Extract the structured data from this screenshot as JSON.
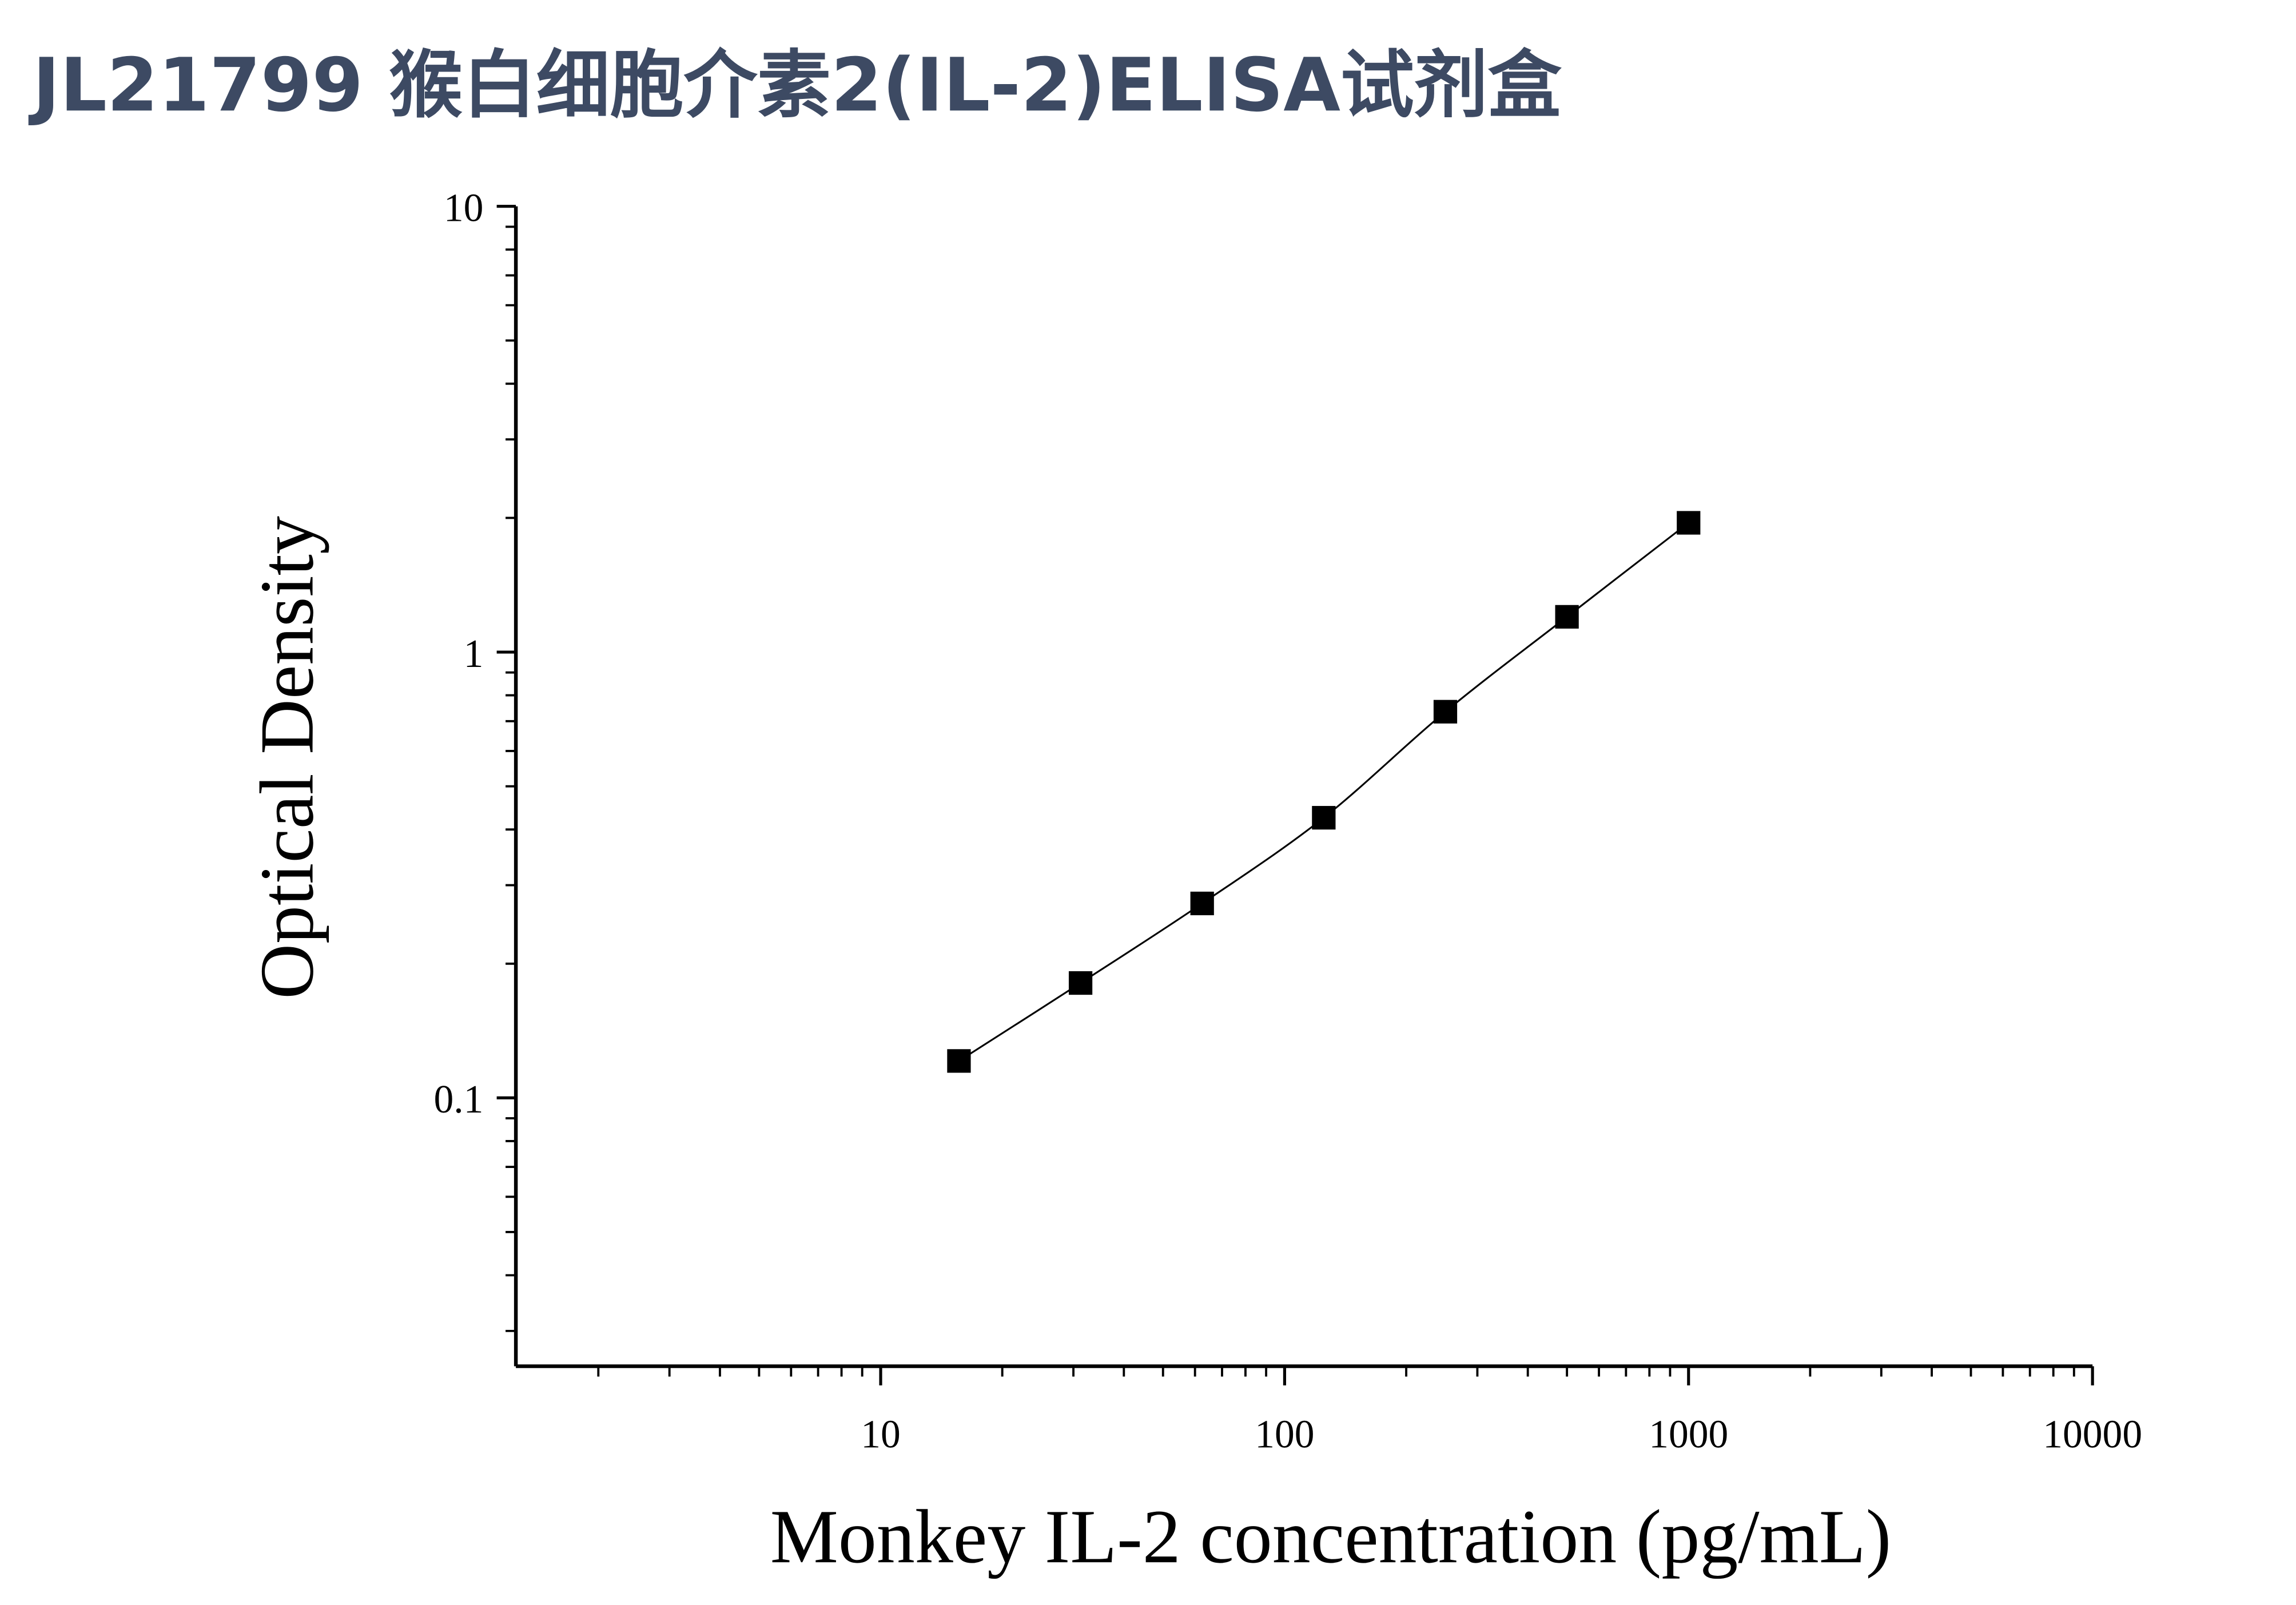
{
  "chart_data": {
    "type": "scatter",
    "title": "JL21799 猴白细胞介素2(IL-2)ELISA试剂盒",
    "x_label": "Monkey IL-2 concentration (pg/mL)",
    "y_label": "Optical Density",
    "x_scale": "log",
    "y_scale": "log",
    "xlim": [
      1.25,
      10000
    ],
    "ylim": [
      0.025,
      10
    ],
    "xticks": [
      10,
      100,
      1000,
      10000
    ],
    "yticks": [
      0.1,
      1,
      10
    ],
    "minor_ticks": true,
    "connect": true,
    "series": [
      {
        "name": "Monkey IL-2",
        "color": "#000000",
        "x": [
          15.625,
          31.25,
          62.5,
          125,
          250,
          500,
          1000
        ],
        "values": [
          0.121,
          0.181,
          0.273,
          0.425,
          0.735,
          1.2,
          1.95
        ]
      }
    ]
  }
}
